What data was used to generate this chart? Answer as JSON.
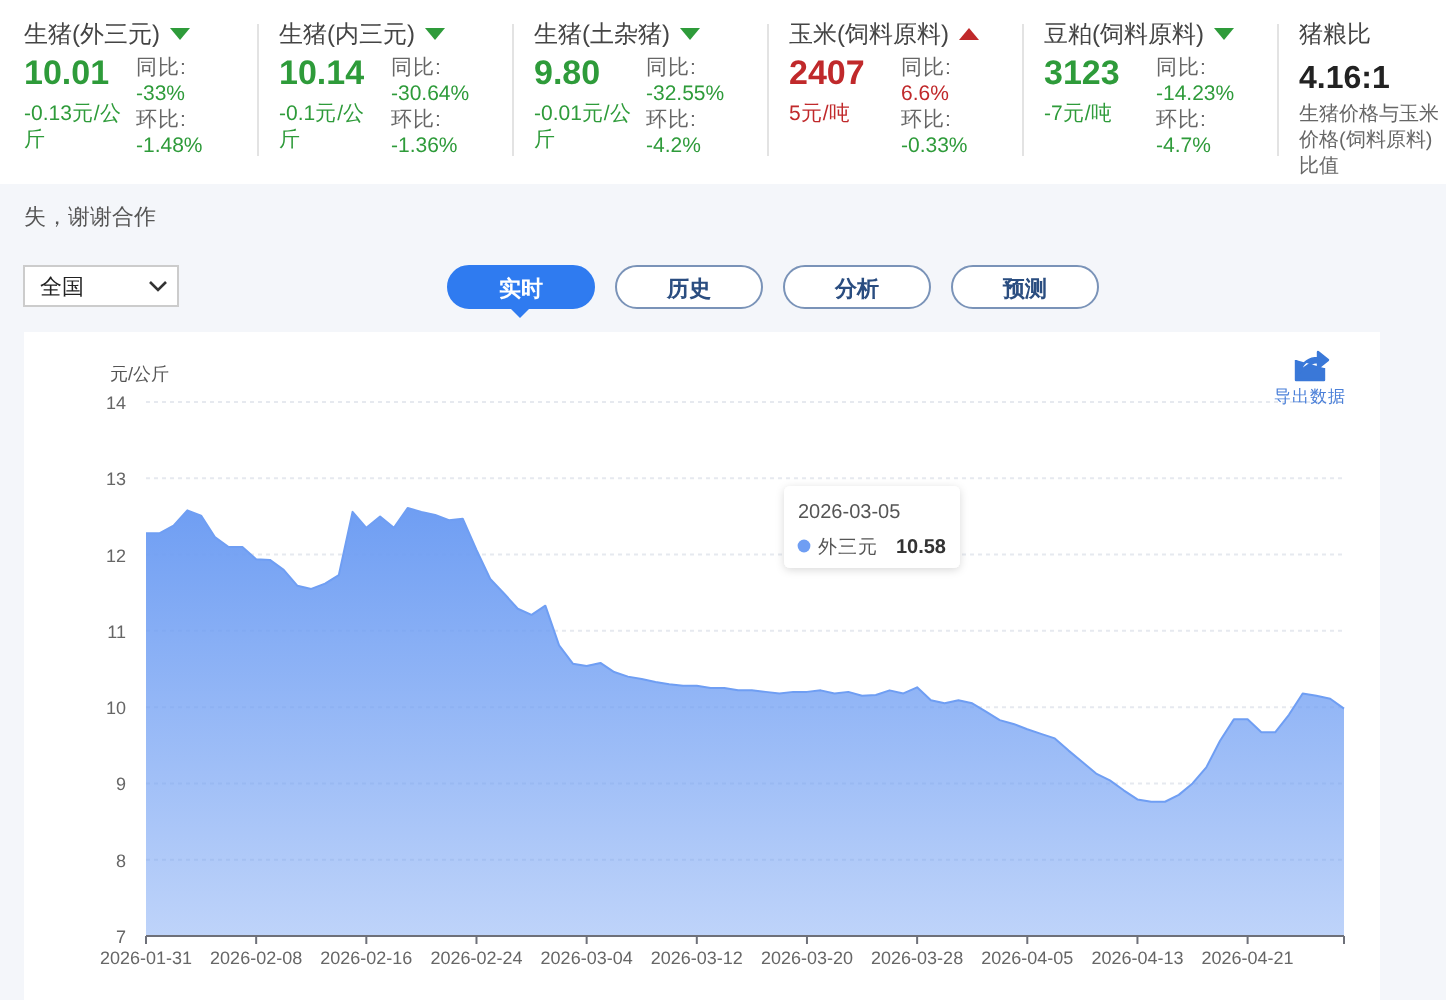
{
  "chart_data": [
    {
      "type": "other",
      "title": "生猪(外三元)",
      "color": "#2e9b3a",
      "annotations": [
        "10.01",
        "-0.13元/公斤",
        "同比:",
        "-33%",
        "环比:",
        "-1.48%"
      ],
      "colors": [
        "#2e9b3a",
        "#2e9b3a",
        "#666666",
        "#2e9b3a",
        "#666666",
        "#2e9b3a"
      ]
    },
    {
      "type": "other",
      "title": "生猪(内三元)",
      "color": "#2e9b3a",
      "annotations": [
        "10.14",
        "-0.1元/公斤",
        "同比:",
        "-30.64%",
        "环比:",
        "-1.36%"
      ],
      "colors": [
        "#2e9b3a",
        "#2e9b3a",
        "#666666",
        "#2e9b3a",
        "#666666",
        "#2e9b3a"
      ]
    },
    {
      "type": "other",
      "title": "生猪(土杂猪)",
      "color": "#2e9b3a",
      "annotations": [
        "9.80",
        "-0.01元/公斤",
        "同比:",
        "-32.55%",
        "环比:",
        "-4.2%"
      ],
      "colors": [
        "#2e9b3a",
        "#2e9b3a",
        "#666666",
        "#2e9b3a",
        "#666666",
        "#2e9b3a"
      ]
    },
    {
      "type": "other",
      "title": "玉米(饲料原料)",
      "color": "#c0292b",
      "annotations": [
        "2407",
        "5元/吨",
        "同比:",
        "6.6%",
        "环比:",
        "-0.33%"
      ],
      "colors": [
        "#c0292b",
        "#c0292b",
        "#666666",
        "#c0292b",
        "#666666",
        "#2e9b3a"
      ]
    },
    {
      "type": "other",
      "title": "豆粕(饲料原料)",
      "color": "#2e9b3a",
      "annotations": [
        "3123",
        "-7元/吨",
        "同比:",
        "-14.23%",
        "环比:",
        "-4.7%"
      ],
      "colors": [
        "#2e9b3a",
        "#2e9b3a",
        "#666666",
        "#2e9b3a",
        "#666666",
        "#2e9b3a"
      ]
    },
    {
      "type": "other",
      "title": "猪粮比",
      "annotations": [
        "4.16:1",
        "生猪价格与玉米价格(饲料原料)比值"
      ],
      "colors": [
        "#222222",
        "#666666"
      ]
    },
    {
      "type": "other",
      "annotations": [
        "失，谢谢合作",
        "全国",
        "实时",
        "历史",
        "分析",
        "预测"
      ]
    },
    {
      "type": "area",
      "ylabel": "元/公斤",
      "ylim": [
        7,
        14
      ],
      "yticks": [
        7,
        8,
        9,
        10,
        11,
        12,
        13,
        14
      ],
      "xlim": [
        "2026-01-31",
        "2026-04-28"
      ],
      "xticks": [
        "2026-01-31",
        "2026-02-08",
        "2026-02-16",
        "2026-02-24",
        "2026-03-04",
        "2026-03-12",
        "2026-03-20",
        "2026-03-28",
        "2026-04-05",
        "2026-04-13",
        "2026-04-21"
      ],
      "grid": "y",
      "legend": "top",
      "annotations": [
        "导出数据",
        "2026-03-05",
        "10.58"
      ],
      "series": [
        {
          "name": "外三元",
          "color": "#6f9ef3",
          "x": [
            "2026-01-31",
            "2026-02-01",
            "2026-02-02",
            "2026-02-03",
            "2026-02-04",
            "2026-02-05",
            "2026-02-06",
            "2026-02-07",
            "2026-02-08",
            "2026-02-09",
            "2026-02-10",
            "2026-02-11",
            "2026-02-12",
            "2026-02-13",
            "2026-02-14",
            "2026-02-15",
            "2026-02-16",
            "2026-02-17",
            "2026-02-18",
            "2026-02-19",
            "2026-02-20",
            "2026-02-21",
            "2026-02-22",
            "2026-02-23",
            "2026-02-24",
            "2026-02-25",
            "2026-02-26",
            "2026-02-27",
            "2026-02-28",
            "2026-03-01",
            "2026-03-02",
            "2026-03-03",
            "2026-03-04",
            "2026-03-05",
            "2026-03-06",
            "2026-03-07",
            "2026-03-08",
            "2026-03-09",
            "2026-03-10",
            "2026-03-11",
            "2026-03-12",
            "2026-03-13",
            "2026-03-14",
            "2026-03-15",
            "2026-03-16",
            "2026-03-17",
            "2026-03-18",
            "2026-03-19",
            "2026-03-20",
            "2026-03-21",
            "2026-03-22",
            "2026-03-23",
            "2026-03-24",
            "2026-03-25",
            "2026-03-26",
            "2026-03-27",
            "2026-03-28",
            "2026-03-29",
            "2026-03-30",
            "2026-03-31",
            "2026-04-01",
            "2026-04-02",
            "2026-04-03",
            "2026-04-04",
            "2026-04-05",
            "2026-04-06",
            "2026-04-07",
            "2026-04-08",
            "2026-04-09",
            "2026-04-10",
            "2026-04-11",
            "2026-04-12",
            "2026-04-13",
            "2026-04-14",
            "2026-04-15",
            "2026-04-16",
            "2026-04-17",
            "2026-04-18",
            "2026-04-19",
            "2026-04-20",
            "2026-04-21",
            "2026-04-22",
            "2026-04-23",
            "2026-04-24",
            "2026-04-25",
            "2026-04-26",
            "2026-04-27",
            "2026-04-28"
          ],
          "values": [
            12.28,
            12.28,
            12.38,
            12.58,
            12.51,
            12.23,
            12.1,
            12.1,
            11.94,
            11.93,
            11.8,
            11.59,
            11.55,
            11.62,
            11.73,
            12.56,
            12.35,
            12.5,
            12.35,
            12.61,
            12.56,
            12.52,
            12.45,
            12.47,
            12.06,
            11.68,
            11.49,
            11.29,
            11.21,
            11.33,
            10.81,
            10.57,
            10.54,
            10.58,
            10.46,
            10.4,
            10.37,
            10.33,
            10.3,
            10.28,
            10.28,
            10.25,
            10.25,
            10.22,
            10.22,
            10.2,
            10.18,
            10.2,
            10.2,
            10.22,
            10.18,
            10.2,
            10.15,
            10.16,
            10.22,
            10.18,
            10.26,
            10.09,
            10.05,
            10.09,
            10.05,
            9.94,
            9.83,
            9.78,
            9.71,
            9.65,
            9.59,
            9.43,
            9.28,
            9.13,
            9.04,
            8.91,
            8.79,
            8.76,
            8.76,
            8.85,
            9.0,
            9.21,
            9.56,
            9.84,
            9.84,
            9.67,
            9.67,
            9.9,
            10.18,
            10.15,
            10.11,
            9.98
          ]
        }
      ]
    }
  ]
}
